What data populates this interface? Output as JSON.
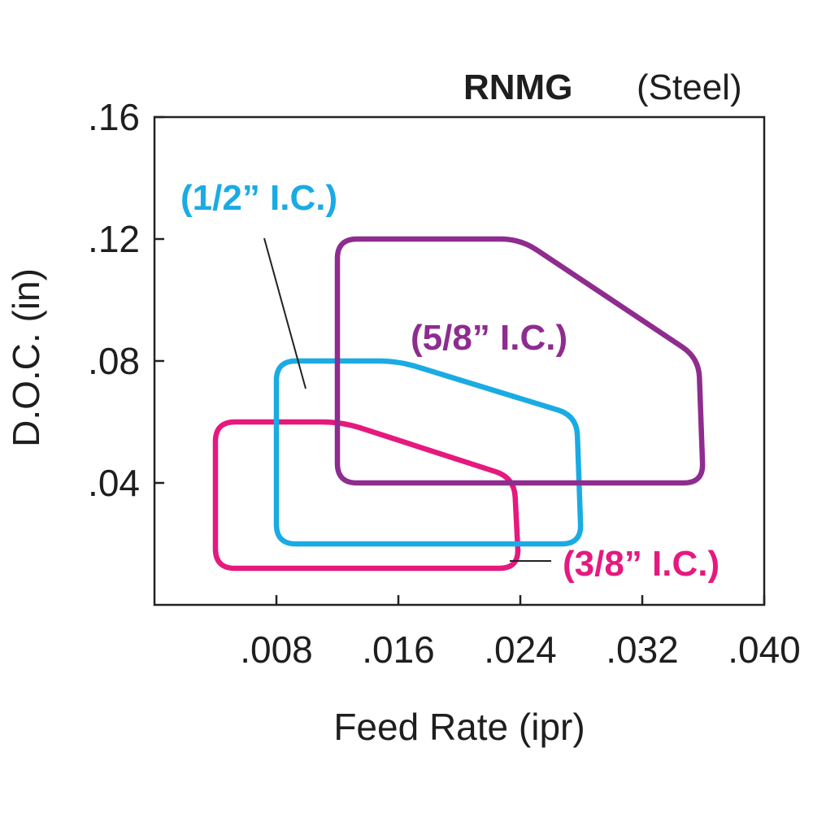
{
  "chart_data": {
    "type": "area",
    "title": "RNMG",
    "subtitle": "(Steel)",
    "xlabel": "Feed Rate (ipr)",
    "ylabel": "D.O.C. (in)",
    "xlim": [
      0,
      0.04
    ],
    "ylim": [
      0,
      0.16
    ],
    "x_ticks": [
      {
        "value": 0.008,
        "label": ".008"
      },
      {
        "value": 0.016,
        "label": ".016"
      },
      {
        "value": 0.024,
        "label": ".024"
      },
      {
        "value": 0.032,
        "label": ".032"
      },
      {
        "value": 0.04,
        "label": ".040"
      }
    ],
    "y_ticks": [
      {
        "value": 0.04,
        "label": ".04"
      },
      {
        "value": 0.08,
        "label": ".08"
      },
      {
        "value": 0.12,
        "label": ".12"
      },
      {
        "value": 0.16,
        "label": ".16"
      }
    ],
    "grid": false,
    "series": [
      {
        "name": "(3/8” I.C.)",
        "color": "#e5197e",
        "polygon": [
          [
            0.004,
            0.06
          ],
          [
            0.0123,
            0.06
          ],
          [
            0.0236,
            0.0417
          ],
          [
            0.0239,
            0.012
          ],
          [
            0.004,
            0.012
          ]
        ]
      },
      {
        "name": "(1/2” I.C.)",
        "color": "#1aabe3",
        "polygon": [
          [
            0.008,
            0.08
          ],
          [
            0.016,
            0.08
          ],
          [
            0.0277,
            0.062
          ],
          [
            0.028,
            0.02
          ],
          [
            0.008,
            0.02
          ]
        ]
      },
      {
        "name": "(5/8” I.C.)",
        "color": "#8e2c8f",
        "polygon": [
          [
            0.012,
            0.12
          ],
          [
            0.024,
            0.12
          ],
          [
            0.0357,
            0.081
          ],
          [
            0.036,
            0.04
          ],
          [
            0.012,
            0.04
          ]
        ]
      }
    ]
  }
}
